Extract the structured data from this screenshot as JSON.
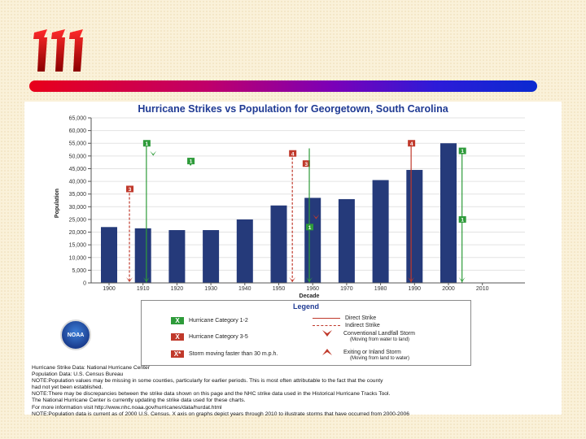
{
  "slide": {
    "colors": {
      "bar": "#253a7a",
      "direct": "#c0392b",
      "green": "#2e9b3a",
      "title": "#1f3a93"
    }
  },
  "chart_data": {
    "type": "bar",
    "title": "Hurricane Strikes vs Population for Georgetown, South Carolina",
    "xlabel": "Decade",
    "ylabel": "Population",
    "ylim": [
      0,
      65000
    ],
    "y_ticks": [
      "0",
      "5,000",
      "10,000",
      "15,000",
      "20,000",
      "25,000",
      "30,000",
      "35,000",
      "40,000",
      "45,000",
      "50,000",
      "55,000",
      "60,000",
      "65,000"
    ],
    "y_tick_values": [
      0,
      5000,
      10000,
      15000,
      20000,
      25000,
      30000,
      35000,
      40000,
      45000,
      50000,
      55000,
      60000,
      65000
    ],
    "categories": [
      "1900",
      "1910",
      "1920",
      "1930",
      "1940",
      "1950",
      "1960",
      "1970",
      "1980",
      "1990",
      "2000",
      "2010"
    ],
    "values": [
      22000,
      21500,
      20800,
      20800,
      25000,
      30500,
      33500,
      33000,
      40500,
      44500,
      55000,
      null
    ],
    "strikes": [
      {
        "year": 1906,
        "category": "3",
        "color": "#c0392b",
        "line": "dashed",
        "badge_value": 37000
      },
      {
        "year": 1911,
        "category": "1",
        "color": "#2e9b3a",
        "line": "solid",
        "badge_value": 55000
      },
      {
        "year": 1913,
        "category": "",
        "color": "#2e9b3a",
        "line": "arrow-only",
        "badge_value": 52000
      },
      {
        "year": 1924,
        "category": "1",
        "color": "#2e9b3a",
        "line": "arrow-only",
        "badge_value": 48000
      },
      {
        "year": 1954,
        "category": "4",
        "color": "#c0392b",
        "line": "dashed",
        "badge_value": 51000
      },
      {
        "year": 1958,
        "category": "3",
        "color": "#c0392b",
        "line": "badge-only",
        "badge_value": 47000
      },
      {
        "year": 1959,
        "category": "",
        "color": "#2e9b3a",
        "line": "solid",
        "badge_value": 53000
      },
      {
        "year": 1959,
        "category": "1",
        "color": "#2e9b3a",
        "line": "badge-only",
        "badge_value": 22000
      },
      {
        "year": 1961,
        "category": "",
        "color": "#c0392b",
        "line": "arrow-only",
        "badge_value": 27000
      },
      {
        "year": 1989,
        "category": "4",
        "color": "#c0392b",
        "line": "solid",
        "badge_value": 55000
      },
      {
        "year": 2004,
        "category": "1",
        "color": "#2e9b3a",
        "line": "solid",
        "badge_value": 52000
      },
      {
        "year": 2004,
        "category": "1",
        "color": "#2e9b3a",
        "line": "badge-only",
        "badge_value": 25000
      }
    ]
  },
  "legend": {
    "title": "Legend",
    "cat12": "Hurricane Category 1-2",
    "cat35": "Hurricane Category 3-5",
    "fast": "Storm moving faster than 30 m.p.h.",
    "direct": "Direct Strike",
    "indirect": "Indirect Strike",
    "landfall": "Conventional Landfall Storm",
    "landfall_sub": "(Moving from water to land)",
    "exiting": "Exiting or Inland Storm",
    "exiting_sub": "(Moving from land to water)",
    "x_glyph": "X",
    "x_star": "X*"
  },
  "noaa_label": "NOAA",
  "notes": [
    "Hurricane Strike Data: National Hurricane Center",
    "Population Data: U.S. Census Bureau",
    "NOTE:Population values may be missing in some counties, particularly for earlier periods. This is most often attributable to the fact that the county",
    "      had not yet been established.",
    "NOTE:There may be discrepancies between the strike data shown on this page and the NHC strike data used in the Historical Hurricane Tracks Tool.",
    "      The National Hurricane Center is currently updating the strike data used for these charts.",
    "      For more information visit http://www.nhc.noaa.gov/hurricanes/data/hurdat.html",
    "NOTE:Population data is current as of 2000 U.S. Census. X axis on graphs depict years through 2010 to illustrate storms that have occurred from 2000-2006"
  ]
}
